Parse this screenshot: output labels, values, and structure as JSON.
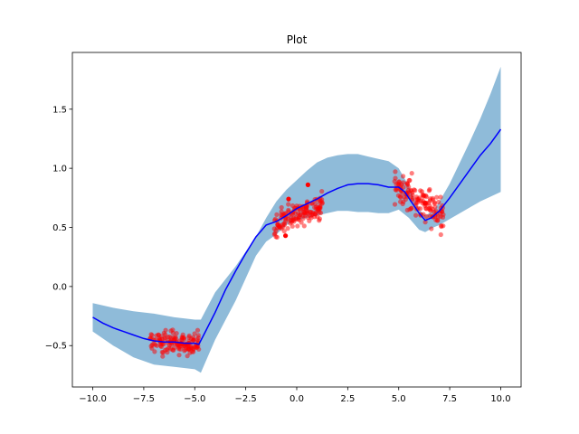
{
  "chart_data": {
    "type": "line",
    "title": "Plot",
    "xlabel": "",
    "ylabel": "",
    "xlim": [
      -11,
      11
    ],
    "ylim": [
      -0.85,
      1.98
    ],
    "grid": false,
    "x_ticks": [
      -10.0,
      -7.5,
      -5.0,
      -2.5,
      0.0,
      2.5,
      5.0,
      7.5,
      10.0
    ],
    "x_tick_labels": [
      "−10.0",
      "−7.5",
      "−5.0",
      "−2.5",
      "0.0",
      "2.5",
      "5.0",
      "7.5",
      "10.0"
    ],
    "y_ticks": [
      -0.5,
      0.0,
      0.5,
      1.0,
      1.5
    ],
    "y_tick_labels": [
      "−0.5",
      "0.0",
      "0.5",
      "1.0",
      "1.5"
    ],
    "colors": {
      "band": "#1f77b4",
      "band_opacity": 0.5,
      "mean": "#0000ff",
      "points": "#ff0000",
      "points_opacity": 0.5
    },
    "confidence_band": {
      "x": [
        -10.0,
        -9.0,
        -8.0,
        -7.0,
        -6.0,
        -5.0,
        -4.7,
        -4.0,
        -3.0,
        -2.0,
        -1.5,
        -1.0,
        -0.5,
        0.0,
        0.5,
        1.0,
        1.5,
        2.0,
        2.5,
        3.0,
        3.5,
        4.0,
        4.5,
        5.0,
        5.5,
        6.0,
        6.3,
        6.7,
        7.0,
        7.5,
        8.0,
        8.5,
        9.0,
        9.5,
        10.0
      ],
      "upper": [
        -0.14,
        -0.18,
        -0.21,
        -0.23,
        -0.26,
        -0.28,
        -0.28,
        -0.05,
        0.17,
        0.42,
        0.58,
        0.72,
        0.82,
        0.9,
        0.98,
        1.05,
        1.09,
        1.11,
        1.12,
        1.12,
        1.1,
        1.08,
        1.06,
        1.0,
        0.85,
        0.65,
        0.6,
        0.64,
        0.72,
        0.87,
        1.05,
        1.23,
        1.42,
        1.63,
        1.86
      ],
      "lower": [
        -0.38,
        -0.5,
        -0.6,
        -0.66,
        -0.68,
        -0.7,
        -0.73,
        -0.45,
        -0.12,
        0.26,
        0.38,
        0.44,
        0.52,
        0.56,
        0.58,
        0.6,
        0.62,
        0.64,
        0.64,
        0.63,
        0.63,
        0.62,
        0.62,
        0.65,
        0.58,
        0.48,
        0.46,
        0.5,
        0.52,
        0.57,
        0.62,
        0.67,
        0.72,
        0.76,
        0.8
      ]
    },
    "series": [
      {
        "x": [
          -10.0,
          -9.5,
          -9.0,
          -8.5,
          -8.0,
          -7.5,
          -7.0,
          -6.5,
          -6.0,
          -5.5,
          -5.0,
          -4.8,
          -4.5,
          -4.0,
          -3.5,
          -3.0,
          -2.5,
          -2.0,
          -1.5,
          -1.0,
          -0.5,
          0.0,
          0.5,
          1.0,
          1.5,
          2.0,
          2.5,
          3.0,
          3.5,
          4.0,
          4.5,
          5.0,
          5.3,
          5.6,
          6.0,
          6.3,
          6.6,
          7.0,
          7.5,
          8.0,
          8.5,
          9.0,
          9.5,
          10.0
        ],
        "y": [
          -0.26,
          -0.31,
          -0.35,
          -0.38,
          -0.41,
          -0.44,
          -0.46,
          -0.47,
          -0.47,
          -0.48,
          -0.48,
          -0.49,
          -0.39,
          -0.22,
          -0.03,
          0.13,
          0.28,
          0.42,
          0.52,
          0.55,
          0.6,
          0.66,
          0.7,
          0.74,
          0.79,
          0.83,
          0.86,
          0.87,
          0.87,
          0.86,
          0.84,
          0.84,
          0.8,
          0.72,
          0.62,
          0.56,
          0.58,
          0.64,
          0.75,
          0.87,
          0.99,
          1.11,
          1.21,
          1.33
        ]
      }
    ],
    "scatter_clusters": [
      {
        "x_range": [
          -7.2,
          -4.8
        ],
        "y_center": -0.48,
        "y_spread": 0.08,
        "count": 140
      },
      {
        "x_range": [
          -1.1,
          1.3
        ],
        "y_center": 0.6,
        "y_spread": 0.09,
        "count": 140
      },
      {
        "x_range": [
          4.8,
          7.2
        ],
        "y_center": 0.7,
        "y_spread": 0.12,
        "count": 140
      }
    ],
    "scatter_outliers": [
      {
        "x": -0.4,
        "y": 0.74
      },
      {
        "x": 0.55,
        "y": 0.86
      },
      {
        "x": -0.55,
        "y": 0.43
      }
    ]
  }
}
